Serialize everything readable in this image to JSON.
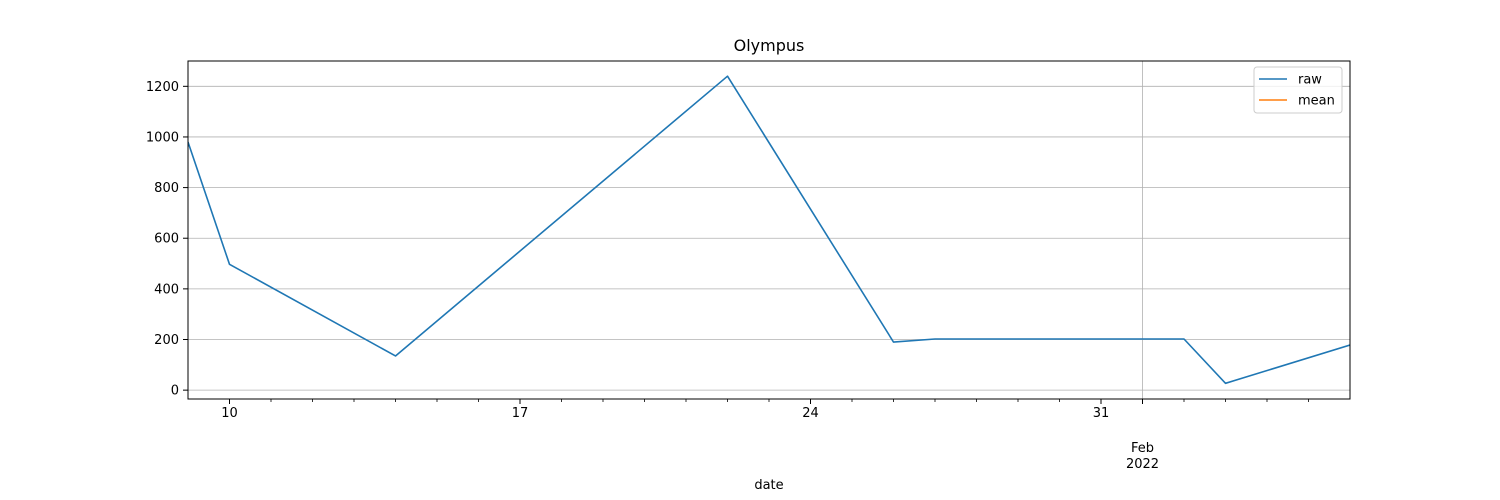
{
  "chart_data": {
    "type": "line",
    "title": "Olympus",
    "xlabel": "date",
    "ylabel": "",
    "ylim": [
      -35,
      1300
    ],
    "xlim_days": [
      0,
      28
    ],
    "y_ticks": [
      0,
      200,
      400,
      600,
      800,
      1000,
      1200
    ],
    "x_major_ticks": [
      {
        "day": 1,
        "label": "10"
      },
      {
        "day": 8,
        "label": "17"
      },
      {
        "day": 15,
        "label": "24"
      },
      {
        "day": 22,
        "label": "31"
      },
      {
        "day": 23,
        "label": "Feb",
        "sublabel": "2022"
      }
    ],
    "x_minor_days": [
      2,
      3,
      4,
      5,
      6,
      7,
      9,
      10,
      11,
      12,
      13,
      14,
      16,
      17,
      18,
      19,
      20,
      21,
      24,
      25,
      26,
      27
    ],
    "grid": true,
    "legend_position": "top-right",
    "series": [
      {
        "name": "raw",
        "color": "#1f77b4",
        "points": [
          {
            "day": 0,
            "value": 980
          },
          {
            "day": 1,
            "value": 497
          },
          {
            "day": 5,
            "value": 135
          },
          {
            "day": 13,
            "value": 1240
          },
          {
            "day": 17,
            "value": 190
          },
          {
            "day": 18,
            "value": 202
          },
          {
            "day": 24,
            "value": 202
          },
          {
            "day": 25,
            "value": 27
          },
          {
            "day": 28,
            "value": 178
          }
        ]
      },
      {
        "name": "mean",
        "color": "#ff7f0e",
        "points": []
      }
    ]
  }
}
